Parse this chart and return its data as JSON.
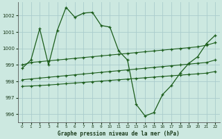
{
  "title": "Graphe pression niveau de la mer (hPa)",
  "background_color": "#cce8e0",
  "grid_color": "#aacccc",
  "line_color": "#1a5c1a",
  "xlim": [
    -0.5,
    22.5
  ],
  "ylim": [
    995.5,
    1002.8
  ],
  "yticks": [
    996,
    997,
    998,
    999,
    1000,
    1001,
    1002
  ],
  "xticks": [
    0,
    1,
    2,
    3,
    4,
    5,
    6,
    7,
    8,
    9,
    10,
    11,
    12,
    13,
    14,
    15,
    16,
    17,
    18,
    19,
    20,
    21,
    22
  ],
  "series1_x": [
    0,
    1,
    2,
    3,
    4,
    5,
    6,
    7,
    8,
    9,
    10,
    11,
    12,
    13,
    14,
    15,
    16,
    17,
    18,
    19,
    20,
    21,
    22
  ],
  "series1_y": [
    998.8,
    999.3,
    1001.2,
    999.0,
    1001.1,
    1002.5,
    1001.9,
    1002.15,
    1002.2,
    1001.4,
    1001.3,
    999.85,
    999.3,
    996.6,
    995.9,
    996.1,
    997.2,
    997.75,
    998.5,
    999.1,
    999.5,
    1000.3,
    1000.8
  ],
  "series2_x": [
    0,
    1,
    2,
    3,
    4,
    5,
    6,
    7,
    8,
    9,
    10,
    11,
    12,
    13,
    14,
    15,
    16,
    17,
    18,
    19,
    20,
    21,
    22
  ],
  "series2_y": [
    999.0,
    999.15,
    999.2,
    999.25,
    999.3,
    999.35,
    999.4,
    999.45,
    999.5,
    999.55,
    999.6,
    999.65,
    999.7,
    999.75,
    999.8,
    999.85,
    999.9,
    999.95,
    1000.0,
    1000.05,
    1000.1,
    1000.2,
    1000.35
  ],
  "series3_x": [
    0,
    1,
    2,
    3,
    4,
    5,
    6,
    7,
    8,
    9,
    10,
    11,
    12,
    13,
    14,
    15,
    16,
    17,
    18,
    19,
    20,
    21,
    22
  ],
  "series3_y": [
    998.1,
    998.15,
    998.2,
    998.25,
    998.3,
    998.35,
    998.4,
    998.45,
    998.5,
    998.55,
    998.6,
    998.65,
    998.7,
    998.75,
    998.8,
    998.85,
    998.9,
    998.95,
    999.0,
    999.05,
    999.1,
    999.15,
    999.3
  ],
  "series4_x": [
    0,
    1,
    2,
    3,
    4,
    5,
    6,
    7,
    8,
    9,
    10,
    11,
    12,
    13,
    14,
    15,
    16,
    17,
    18,
    19,
    20,
    21,
    22
  ],
  "series4_y": [
    997.7,
    997.72,
    997.75,
    997.78,
    997.82,
    997.86,
    997.9,
    997.94,
    997.98,
    998.02,
    998.06,
    998.1,
    998.14,
    998.18,
    998.22,
    998.26,
    998.3,
    998.34,
    998.38,
    998.42,
    998.46,
    998.5,
    998.6
  ]
}
